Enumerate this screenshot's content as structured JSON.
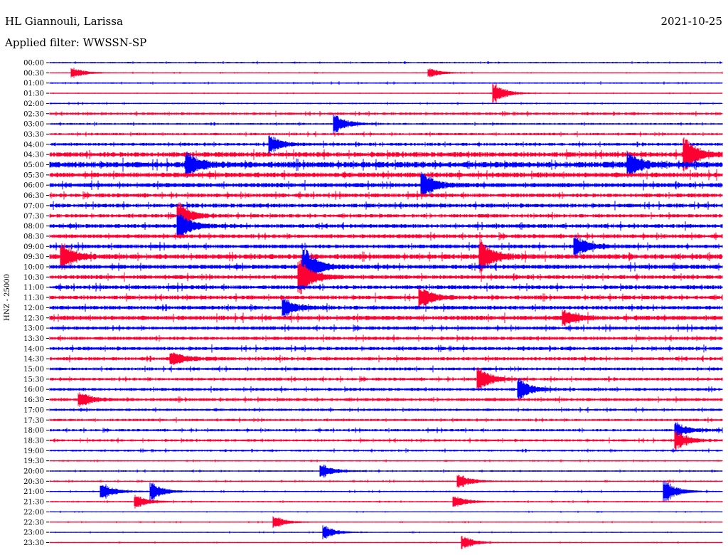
{
  "header": {
    "station": "HL Giannouli, Larissa",
    "date": "2021-10-25",
    "filter": "Applied filter: WWSSN-SP"
  },
  "chart_data": {
    "type": "line",
    "title": "HL Giannouli, Larissa",
    "subtitle": "Applied filter: WWSSN-SP",
    "date": "2021-10-25",
    "ylabel": "HNZ - 25000",
    "xlabel": "",
    "colors": [
      "#0000ff",
      "#ff0033"
    ],
    "rows": [
      "00:00",
      "00:30",
      "01:00",
      "01:30",
      "02:00",
      "02:30",
      "03:00",
      "03:30",
      "04:00",
      "04:30",
      "05:00",
      "05:30",
      "06:00",
      "06:30",
      "07:00",
      "07:30",
      "08:00",
      "08:30",
      "09:00",
      "09:30",
      "10:00",
      "10:30",
      "11:00",
      "11:30",
      "12:00",
      "12:30",
      "13:00",
      "13:30",
      "14:00",
      "14:30",
      "15:00",
      "15:30",
      "16:00",
      "16:30",
      "17:00",
      "17:30",
      "18:00",
      "18:30",
      "19:00",
      "19:30",
      "20:00",
      "20:30",
      "21:00",
      "21:30",
      "22:00",
      "22:30",
      "23:00",
      "23:30"
    ],
    "trace_minutes": 30,
    "noise_level": [
      0.3,
      0.2,
      0.3,
      0.2,
      0.3,
      0.5,
      0.4,
      0.5,
      0.6,
      1.0,
      1.2,
      1.0,
      0.9,
      0.8,
      0.8,
      0.7,
      0.8,
      0.8,
      0.8,
      1.0,
      0.9,
      0.8,
      0.8,
      0.8,
      0.8,
      0.9,
      0.7,
      0.7,
      0.7,
      0.7,
      0.6,
      0.6,
      0.6,
      0.6,
      0.5,
      0.5,
      0.5,
      0.5,
      0.4,
      0.3,
      0.3,
      0.3,
      0.3,
      0.3,
      0.2,
      0.2,
      0.2,
      0.2
    ],
    "events": [
      {
        "row": 1,
        "minute": 1.1,
        "amplitude": 7
      },
      {
        "row": 1,
        "minute": 17.0,
        "amplitude": 6
      },
      {
        "row": 3,
        "minute": 19.9,
        "amplitude": 14
      },
      {
        "row": 6,
        "minute": 12.8,
        "amplitude": 12
      },
      {
        "row": 8,
        "minute": 9.9,
        "amplitude": 11
      },
      {
        "row": 9,
        "minute": 28.4,
        "amplitude": 22
      },
      {
        "row": 10,
        "minute": 6.2,
        "amplitude": 16
      },
      {
        "row": 10,
        "minute": 25.9,
        "amplitude": 15
      },
      {
        "row": 12,
        "minute": 16.7,
        "amplitude": 18
      },
      {
        "row": 15,
        "minute": 5.8,
        "amplitude": 18
      },
      {
        "row": 16,
        "minute": 5.8,
        "amplitude": 20
      },
      {
        "row": 18,
        "minute": 23.5,
        "amplitude": 14
      },
      {
        "row": 19,
        "minute": 0.6,
        "amplitude": 18
      },
      {
        "row": 19,
        "minute": 19.3,
        "amplitude": 22
      },
      {
        "row": 20,
        "minute": 11.4,
        "amplitude": 28
      },
      {
        "row": 21,
        "minute": 11.2,
        "amplitude": 26
      },
      {
        "row": 23,
        "minute": 16.6,
        "amplitude": 14
      },
      {
        "row": 24,
        "minute": 10.5,
        "amplitude": 12
      },
      {
        "row": 25,
        "minute": 23.0,
        "amplitude": 10
      },
      {
        "row": 29,
        "minute": 5.5,
        "amplitude": 10
      },
      {
        "row": 31,
        "minute": 19.2,
        "amplitude": 16
      },
      {
        "row": 32,
        "minute": 21.0,
        "amplitude": 14
      },
      {
        "row": 33,
        "minute": 1.4,
        "amplitude": 10
      },
      {
        "row": 36,
        "minute": 28.0,
        "amplitude": 10
      },
      {
        "row": 37,
        "minute": 28.0,
        "amplitude": 12
      },
      {
        "row": 40,
        "minute": 12.2,
        "amplitude": 10
      },
      {
        "row": 41,
        "minute": 18.3,
        "amplitude": 10
      },
      {
        "row": 42,
        "minute": 2.4,
        "amplitude": 11
      },
      {
        "row": 42,
        "minute": 4.6,
        "amplitude": 12
      },
      {
        "row": 42,
        "minute": 27.5,
        "amplitude": 16
      },
      {
        "row": 43,
        "minute": 3.9,
        "amplitude": 9
      },
      {
        "row": 43,
        "minute": 18.1,
        "amplitude": 8
      },
      {
        "row": 45,
        "minute": 10.1,
        "amplitude": 8
      },
      {
        "row": 46,
        "minute": 12.3,
        "amplitude": 9
      },
      {
        "row": 47,
        "minute": 18.5,
        "amplitude": 9
      }
    ]
  }
}
